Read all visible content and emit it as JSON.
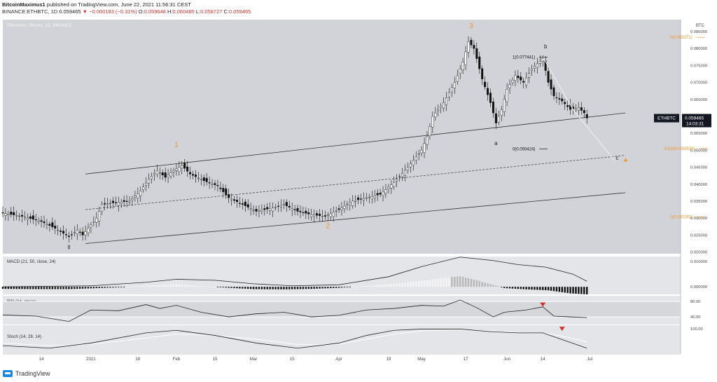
{
  "header": {
    "author": "BitcoinMaximus1",
    "published": "published on TradingView.com, June 22, 2021 11:56:31 CEST",
    "symbol": "BINANCE:ETHBTC, 1D",
    "last": "0.059465",
    "change": "−0.000183 (−0.31%)",
    "o_label": "O:",
    "o": "0.059648",
    "h_label": "H:",
    "h": "0.060485",
    "l_label": "L:",
    "l": "0.058727",
    "c_label": "C:",
    "c": "0.059465"
  },
  "footer": {
    "brand": "TradingView"
  },
  "colors": {
    "pane_bg": "#d2d3d8",
    "panel_bg": "#e4e5e8",
    "orange": "#f0932b",
    "text": "#222222",
    "red": "#d0342c",
    "price_tag": "#131722"
  },
  "chart_data": {
    "type": "candlestick",
    "title": "Ethereum / Bitcoin, 1D, BINANCE",
    "y_axis_label": "BTC",
    "ylim": [
      0.0195,
      0.0885
    ],
    "yticks": [
      "0.085000",
      "0.080000",
      "0.075000",
      "0.070000",
      "0.065000",
      "0.060000",
      "0.055000",
      "0.050000",
      "0.045000",
      "0.040000",
      "0.035000",
      "0.030000",
      "0.025000",
      "0.020000"
    ],
    "ytick_values": [
      0.085,
      0.08,
      0.075,
      0.07,
      0.065,
      0.06,
      0.055,
      0.05,
      0.045,
      0.04,
      0.035,
      0.03,
      0.025,
      0.02
    ],
    "x_ticks": [
      {
        "label": "14",
        "day": -18
      },
      {
        "label": "2021",
        "day": 0
      },
      {
        "label": "18",
        "day": 17
      },
      {
        "label": "Feb",
        "day": 31
      },
      {
        "label": "15",
        "day": 45
      },
      {
        "label": "Mar",
        "day": 59
      },
      {
        "label": "15",
        "day": 73
      },
      {
        "label": "Apr",
        "day": 90
      },
      {
        "label": "19",
        "day": 108
      },
      {
        "label": "May",
        "day": 120
      },
      {
        "label": "17",
        "day": 136
      },
      {
        "label": "Jun",
        "day": 151
      },
      {
        "label": "14",
        "day": 164
      },
      {
        "label": "Jul",
        "day": 181
      }
    ],
    "price_tag": {
      "symbol": "ETHBTC",
      "value": "0.059465",
      "countdown": "14:03:31"
    },
    "close_path": [
      [
        -32,
        0.0315
      ],
      [
        -25,
        0.0305
      ],
      [
        -18,
        0.029
      ],
      [
        -13,
        0.027
      ],
      [
        -8,
        0.0245
      ],
      [
        -5,
        0.0265
      ],
      [
        -3,
        0.025
      ],
      [
        2,
        0.03
      ],
      [
        4,
        0.034
      ],
      [
        8,
        0.0345
      ],
      [
        14,
        0.035
      ],
      [
        18,
        0.038
      ],
      [
        21,
        0.0415
      ],
      [
        24,
        0.044
      ],
      [
        27,
        0.042
      ],
      [
        30,
        0.044
      ],
      [
        33,
        0.0455
      ],
      [
        36,
        0.043
      ],
      [
        41,
        0.041
      ],
      [
        46,
        0.0395
      ],
      [
        50,
        0.036
      ],
      [
        55,
        0.034
      ],
      [
        60,
        0.032
      ],
      [
        66,
        0.033
      ],
      [
        70,
        0.034
      ],
      [
        75,
        0.032
      ],
      [
        80,
        0.031
      ],
      [
        85,
        0.0305
      ],
      [
        90,
        0.0325
      ],
      [
        95,
        0.035
      ],
      [
        100,
        0.036
      ],
      [
        105,
        0.037
      ],
      [
        110,
        0.0405
      ],
      [
        115,
        0.045
      ],
      [
        120,
        0.05
      ],
      [
        122,
        0.054
      ],
      [
        124,
        0.06
      ],
      [
        128,
        0.064
      ],
      [
        132,
        0.07
      ],
      [
        135,
        0.076
      ],
      [
        137,
        0.082
      ],
      [
        139,
        0.08
      ],
      [
        142,
        0.071
      ],
      [
        145,
        0.064
      ],
      [
        147,
        0.058
      ],
      [
        149,
        0.062
      ],
      [
        151,
        0.068
      ],
      [
        154,
        0.072
      ],
      [
        157,
        0.07
      ],
      [
        160,
        0.074
      ],
      [
        164,
        0.077
      ],
      [
        166,
        0.07
      ],
      [
        168,
        0.066
      ],
      [
        171,
        0.0645
      ],
      [
        174,
        0.062
      ],
      [
        177,
        0.0625
      ],
      [
        179,
        0.061
      ],
      [
        180,
        0.0595
      ]
    ],
    "channel": {
      "upper": [
        [
          -2,
          0.043
        ],
        [
          194,
          0.061
        ]
      ],
      "middle": [
        [
          -2,
          0.0325
        ],
        [
          194,
          0.0485
        ]
      ],
      "lower": [
        [
          -2,
          0.0225
        ],
        [
          194,
          0.0375
        ]
      ]
    },
    "projection": [
      [
        164,
        0.0775
      ],
      [
        175,
        0.062
      ],
      [
        190,
        0.047
      ]
    ],
    "wave_labels": [
      {
        "label": "1",
        "day": 31,
        "value": 0.051,
        "color": "orange"
      },
      {
        "label": "2",
        "day": 86,
        "value": 0.027,
        "color": "orange"
      },
      {
        "label": "3",
        "day": 138,
        "value": 0.086,
        "color": "orange"
      },
      {
        "label": "a",
        "day": 147,
        "value": 0.0515,
        "color": "dark"
      },
      {
        "label": "b",
        "day": 165,
        "value": 0.08,
        "color": "dark"
      },
      {
        "label": "c",
        "day": 191,
        "value": 0.0472,
        "color": "dark"
      },
      {
        "label": "II",
        "day": -8,
        "value": 0.0208,
        "color": "dark"
      }
    ],
    "fib_levels": [
      {
        "label": "0(0.083271)",
        "value": 0.0833,
        "day_start": 210,
        "color": "orange"
      },
      {
        "label": "1(0.077441)",
        "value": 0.0774,
        "day_start": 153,
        "color": "dark"
      },
      {
        "label": "0(0.050424)",
        "value": 0.0504,
        "day_start": 153,
        "color": "dark"
      },
      {
        "label": "0.618(0.050530)",
        "value": 0.0505,
        "day_start": 208,
        "color": "orange"
      },
      {
        "label": "1(0.030292)",
        "value": 0.0303,
        "day_start": 210,
        "color": "orange"
      }
    ],
    "target_day": 194,
    "macd": {
      "title": "MACD (21, 50, close, 24)",
      "yticks": [
        "0.010000",
        "0.000000"
      ],
      "ytick_values": [
        0.01,
        0.0
      ],
      "ylim": [
        -0.003,
        0.012
      ],
      "line": [
        [
          -32,
          0.0
        ],
        [
          0,
          0.0004
        ],
        [
          20,
          0.0018
        ],
        [
          31,
          0.003
        ],
        [
          45,
          0.0026
        ],
        [
          59,
          0.0012
        ],
        [
          73,
          0.0004
        ],
        [
          90,
          0.0008
        ],
        [
          108,
          0.004
        ],
        [
          120,
          0.008
        ],
        [
          134,
          0.0118
        ],
        [
          146,
          0.0104
        ],
        [
          155,
          0.0088
        ],
        [
          165,
          0.0078
        ],
        [
          175,
          0.005
        ],
        [
          180,
          0.0022
        ]
      ],
      "histogram": [
        [
          -32,
          -0.0008
        ],
        [
          -20,
          -0.0009
        ],
        [
          -8,
          -0.0009
        ],
        [
          0,
          -0.0006
        ],
        [
          10,
          -0.0002
        ],
        [
          20,
          0.0005
        ],
        [
          31,
          0.001
        ],
        [
          40,
          0.0004
        ],
        [
          50,
          -0.0004
        ],
        [
          59,
          -0.0009
        ],
        [
          70,
          -0.001
        ],
        [
          80,
          -0.0008
        ],
        [
          90,
          -0.0004
        ],
        [
          100,
          0.0004
        ],
        [
          110,
          0.0012
        ],
        [
          120,
          0.0024
        ],
        [
          128,
          0.0036
        ],
        [
          134,
          0.0042
        ],
        [
          140,
          0.0026
        ],
        [
          146,
          0.0008
        ],
        [
          150,
          -0.0005
        ],
        [
          158,
          -0.001
        ],
        [
          166,
          -0.0014
        ],
        [
          174,
          -0.0026
        ],
        [
          180,
          -0.003
        ]
      ]
    },
    "rsi": {
      "title": "RSI (14, close)",
      "yticks": [
        "80.00",
        "40.00"
      ],
      "ytick_values": [
        80,
        40
      ],
      "ylim": [
        20,
        95
      ],
      "line": [
        [
          -32,
          45
        ],
        [
          -20,
          42
        ],
        [
          -8,
          28
        ],
        [
          0,
          58
        ],
        [
          10,
          56
        ],
        [
          20,
          72
        ],
        [
          25,
          62
        ],
        [
          31,
          70
        ],
        [
          40,
          52
        ],
        [
          50,
          40
        ],
        [
          60,
          48
        ],
        [
          70,
          52
        ],
        [
          80,
          40
        ],
        [
          90,
          44
        ],
        [
          100,
          58
        ],
        [
          110,
          62
        ],
        [
          120,
          70
        ],
        [
          128,
          68
        ],
        [
          134,
          84
        ],
        [
          140,
          64
        ],
        [
          146,
          40
        ],
        [
          150,
          52
        ],
        [
          158,
          58
        ],
        [
          164,
          66
        ],
        [
          168,
          42
        ],
        [
          174,
          40
        ],
        [
          180,
          38
        ]
      ],
      "markers": [
        {
          "day": 164,
          "value": 72
        }
      ]
    },
    "stoch": {
      "title": "Stoch (14, 28, 14)",
      "ytick": "100.00",
      "ytick_value": 100,
      "ylim": [
        0,
        110
      ],
      "k": [
        [
          -32,
          30
        ],
        [
          -15,
          20
        ],
        [
          0,
          40
        ],
        [
          20,
          80
        ],
        [
          31,
          90
        ],
        [
          45,
          70
        ],
        [
          60,
          40
        ],
        [
          75,
          20
        ],
        [
          90,
          40
        ],
        [
          100,
          70
        ],
        [
          110,
          90
        ],
        [
          120,
          95
        ],
        [
          134,
          95
        ],
        [
          145,
          85
        ],
        [
          155,
          80
        ],
        [
          164,
          80
        ],
        [
          172,
          50
        ],
        [
          180,
          20
        ]
      ],
      "d": [
        [
          -32,
          40
        ],
        [
          -15,
          30
        ],
        [
          0,
          35
        ],
        [
          20,
          60
        ],
        [
          31,
          75
        ],
        [
          45,
          70
        ],
        [
          60,
          55
        ],
        [
          75,
          35
        ],
        [
          90,
          35
        ],
        [
          100,
          55
        ],
        [
          110,
          75
        ],
        [
          120,
          88
        ],
        [
          134,
          92
        ],
        [
          145,
          88
        ],
        [
          155,
          82
        ],
        [
          164,
          80
        ],
        [
          172,
          65
        ],
        [
          180,
          45
        ]
      ],
      "markers": [
        {
          "day": 171,
          "value": 96
        }
      ]
    }
  }
}
